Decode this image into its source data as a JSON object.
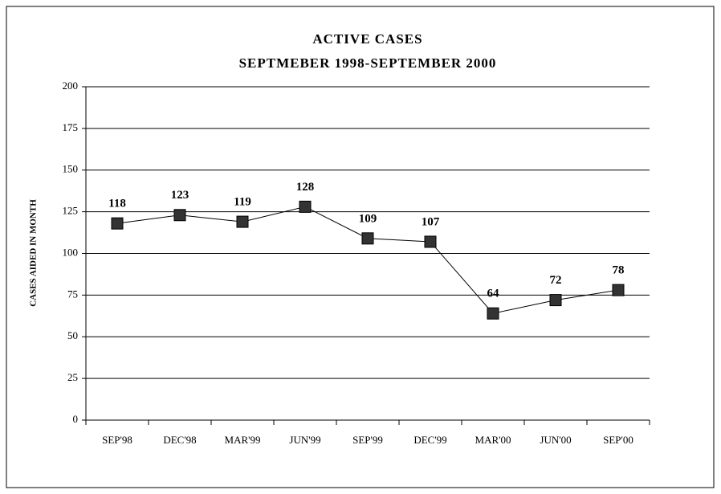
{
  "chart_data": {
    "type": "line",
    "title": "ACTIVE CASES",
    "subtitle": "SEPTMEBER 1998-SEPTEMBER 2000",
    "y_label": "CASES AIDED IN MONTH",
    "categories": [
      "SEP'98",
      "DEC'98",
      "MAR'99",
      "JUN'99",
      "SEP'99",
      "DEC'99",
      "MAR'00",
      "JUN'00",
      "SEP'00"
    ],
    "values": [
      118,
      123,
      119,
      128,
      109,
      107,
      64,
      72,
      78
    ],
    "color": "#333333",
    "ylim": [
      0,
      200
    ],
    "yticks": [
      0,
      25,
      50,
      75,
      100,
      125,
      150,
      175,
      200
    ],
    "grid": true
  }
}
